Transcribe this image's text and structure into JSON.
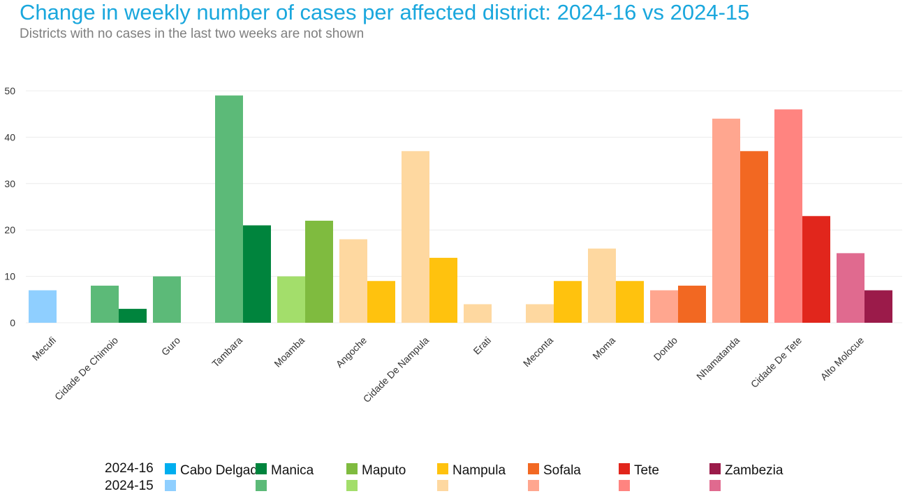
{
  "title": "Change in weekly number of cases per affected district: 2024-16 vs 2024-15",
  "subtitle": "Districts with no cases in the last two weeks are not shown",
  "legend": {
    "row_current": "2024-16",
    "row_previous": "2024-15",
    "provinces": [
      {
        "name": "Cabo Delgado",
        "color_current": "#00aeef",
        "color_previous": "#8fcfff"
      },
      {
        "name": "Manica",
        "color_current": "#00843d",
        "color_previous": "#5cba78"
      },
      {
        "name": "Maputo",
        "color_current": "#7fbb3f",
        "color_previous": "#a3de6b"
      },
      {
        "name": "Nampula",
        "color_current": "#ffc20e",
        "color_previous": "#fed8a0"
      },
      {
        "name": "Sofala",
        "color_current": "#f26822",
        "color_previous": "#ffa68f"
      },
      {
        "name": "Tete",
        "color_current": "#e1261c",
        "color_previous": "#ff8480"
      },
      {
        "name": "Zambezia",
        "color_current": "#9b1b4a",
        "color_previous": "#e06a8f"
      }
    ]
  },
  "chart_data": {
    "type": "bar",
    "ylim": [
      0,
      50
    ],
    "yticks": [
      0,
      10,
      20,
      30,
      40,
      50
    ],
    "grid": true,
    "legend_position": "bottom",
    "categories": [
      "Mecufi",
      "Cidade De Chimoio",
      "Guro",
      "Tambara",
      "Moamba",
      "Angoche",
      "Cidade De Nampula",
      "Erati",
      "Meconta",
      "Moma",
      "Dondo",
      "Nhamatanda",
      "Cidade De Tete",
      "Alto Molocue"
    ],
    "province_index": [
      0,
      1,
      1,
      1,
      2,
      3,
      3,
      3,
      3,
      3,
      4,
      4,
      5,
      6
    ],
    "series": [
      {
        "name": "2024-15",
        "values": [
          7,
          8,
          10,
          49,
          10,
          18,
          37,
          4,
          4,
          16,
          7,
          44,
          46,
          15
        ]
      },
      {
        "name": "2024-16",
        "values": [
          0,
          3,
          0,
          21,
          22,
          9,
          14,
          0,
          9,
          9,
          8,
          37,
          23,
          7
        ]
      }
    ]
  }
}
